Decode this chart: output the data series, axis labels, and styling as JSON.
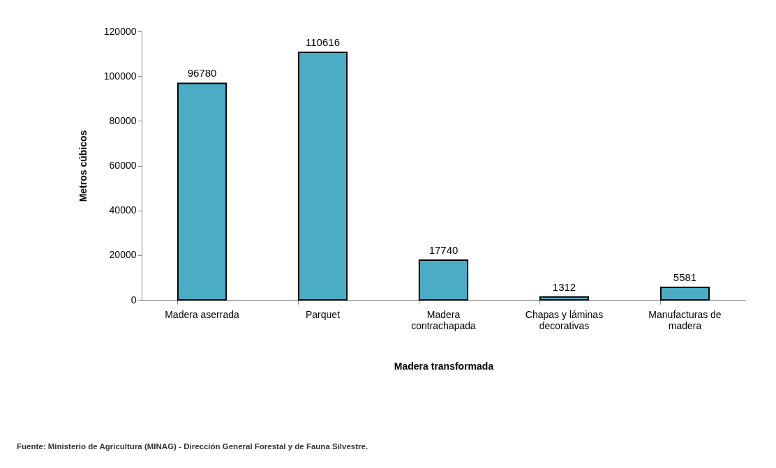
{
  "chart_data": {
    "type": "bar",
    "xlabel": "Madera transformada",
    "ylabel": "Metros cúbicos",
    "categories": [
      "Madera aserrada",
      "Parquet",
      "Madera contrachapada",
      "Chapas y láminas decorativas",
      "Manufacturas de madera"
    ],
    "values": [
      96780,
      110616,
      17740,
      1312,
      5581
    ],
    "color": "#4bacc6",
    "ylim": [
      0,
      120000
    ],
    "yticks": [
      0,
      20000,
      40000,
      60000,
      80000,
      100000,
      120000
    ],
    "data_labels": true,
    "grid": false,
    "annotations": [
      "Fuente: Ministerio de Agricultura (MINAG) - Dirección General Forestal y de Fauna Silvestre."
    ]
  }
}
